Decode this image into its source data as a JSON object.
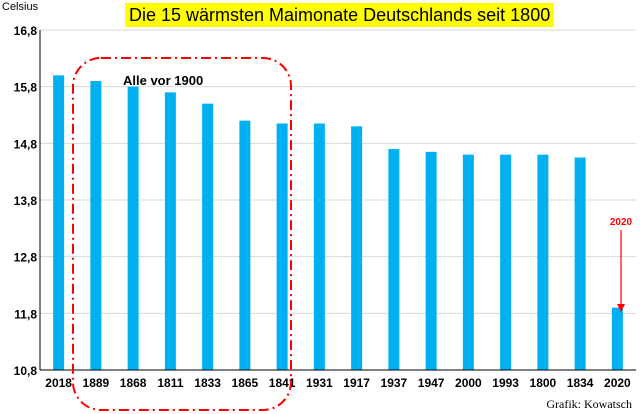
{
  "chart_data": {
    "type": "bar",
    "title": "Die 15 wärmsten Maimonate Deutschlands seit 1800",
    "ylabel": "Celsius",
    "xlabel": "",
    "ylim": [
      10.8,
      16.8
    ],
    "yticks": [
      "10,8",
      "11,8",
      "12,8",
      "13,8",
      "14,8",
      "15,8",
      "16,8"
    ],
    "categories": [
      "2018",
      "1889",
      "1868",
      "1811",
      "1833",
      "1865",
      "1841",
      "1931",
      "1917",
      "1937",
      "1947",
      "2000",
      "1993",
      "1800",
      "1834",
      "2020"
    ],
    "values": [
      16.0,
      15.9,
      15.8,
      15.7,
      15.5,
      15.2,
      15.15,
      15.15,
      15.1,
      14.7,
      14.65,
      14.6,
      14.6,
      14.6,
      14.55,
      11.9
    ],
    "grid": true,
    "bar_color": "#00b0f0",
    "annotations": {
      "group_label": "Alle vor 1900",
      "highlight_label": "2020",
      "highlight_color": "#ff0000",
      "group_box_color": "#ff0000"
    }
  },
  "credit": "Grafik: Kowatsch"
}
